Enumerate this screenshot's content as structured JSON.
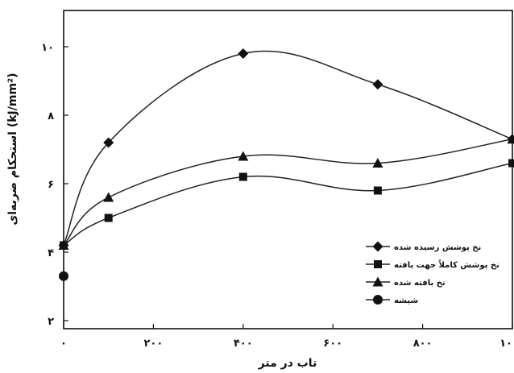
{
  "chart_data": {
    "type": "line",
    "xlabel": "تاب در متر",
    "ylabel": "استحکام ضربه‌ای (kJ/mm²)",
    "xlim": [
      0,
      1000
    ],
    "ylim": [
      2,
      11
    ],
    "x_ticks": [
      0,
      200,
      400,
      600,
      800,
      1000
    ],
    "x_tick_labels": [
      "۰",
      "۲۰۰",
      "۴۰۰",
      "۶۰۰",
      "۸۰۰",
      "۱۰۰۰"
    ],
    "y_ticks": [
      2,
      4,
      6,
      8,
      10
    ],
    "y_tick_labels": [
      "۲",
      "۴",
      "۶",
      "۸",
      "۱۰"
    ],
    "grid": false,
    "legend_position": "bottom-right",
    "series": [
      {
        "name": "نخ پوشش رسیده شده",
        "marker": "diamond",
        "x": [
          0,
          100,
          400,
          700,
          1000
        ],
        "y": [
          4.2,
          7.2,
          9.8,
          8.9,
          7.3
        ]
      },
      {
        "name": "نخ پوشش کاملاً جهت یافته",
        "marker": "square",
        "x": [
          0,
          100,
          400,
          700,
          1000
        ],
        "y": [
          4.2,
          5.0,
          6.2,
          5.8,
          6.6
        ]
      },
      {
        "name": "نخ بافته شده",
        "marker": "triangle",
        "x": [
          0,
          100,
          400,
          700,
          1000
        ],
        "y": [
          4.2,
          5.6,
          6.8,
          6.6,
          7.3
        ]
      },
      {
        "name": "شیشه",
        "marker": "circle",
        "x": [
          0
        ],
        "y": [
          3.3
        ]
      }
    ]
  }
}
